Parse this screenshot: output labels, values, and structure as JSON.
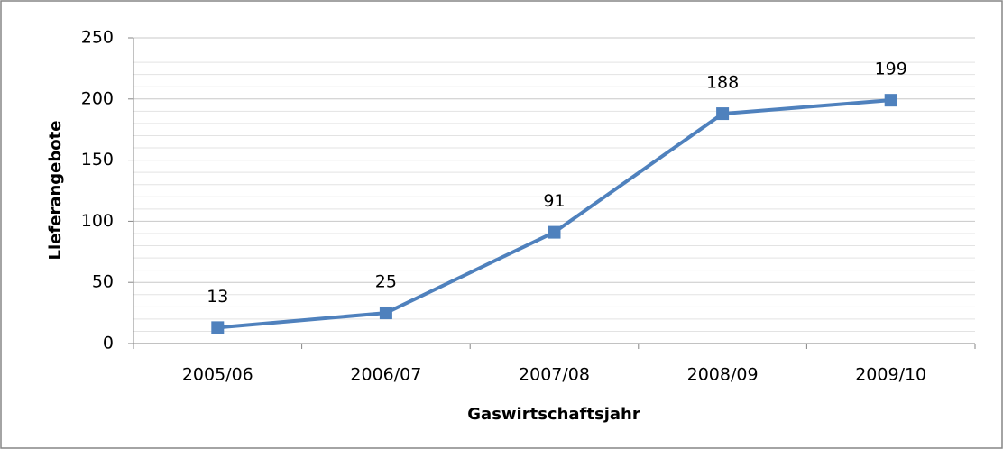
{
  "chart_data": {
    "type": "line",
    "x_label": "Gaswirtschaftsjahr",
    "y_label": "Lieferangebote",
    "categories": [
      "2005/06",
      "2006/07",
      "2007/08",
      "2008/09",
      "2009/10"
    ],
    "series": [
      {
        "name": "Lieferangebote",
        "color": "#4f81bd",
        "values": [
          13,
          25,
          91,
          188,
          199
        ]
      }
    ],
    "ylim": [
      0,
      250
    ],
    "yticks": [
      0,
      50,
      100,
      150,
      200,
      250
    ],
    "minor_yticks": [
      10,
      20,
      30,
      40,
      60,
      70,
      80,
      90,
      110,
      120,
      130,
      140,
      160,
      170,
      180,
      190,
      210,
      220,
      230,
      240
    ],
    "grid": true,
    "data_labels": true
  }
}
